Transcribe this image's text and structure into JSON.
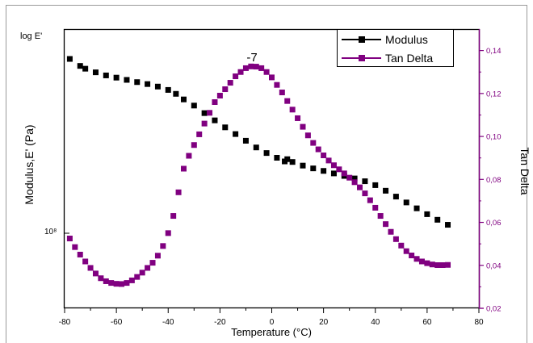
{
  "chart_data": {
    "type": "scatter",
    "title": "",
    "xlabel": "Temperature (°C)",
    "ylabel_left": "Modulus,E' (Pa)",
    "ylabel_right": "Tan Delta",
    "left_axis_top_label": "log E'",
    "left_axis_tick_label": "10⁸",
    "peak_annotation": "-7",
    "xlim": [
      -80,
      80
    ],
    "x_ticks": [
      "-80",
      "-60",
      "-40",
      "-20",
      "0",
      "20",
      "40",
      "60",
      "80"
    ],
    "ylim_right": [
      0.02,
      0.15
    ],
    "right_ticks": [
      "0,02",
      "0,04",
      "0,06",
      "0,08",
      "0,10",
      "0,12",
      "0,14"
    ],
    "left_scale": "log",
    "left_axis_range_fraction": [
      0,
      1
    ],
    "grid": false,
    "legend_position": "top-right",
    "series": [
      {
        "name": "Modulus",
        "axis": "left",
        "color": "#000000",
        "points": [
          [
            -78,
            0.893
          ],
          [
            -74,
            0.868
          ],
          [
            -72,
            0.858
          ],
          [
            -68,
            0.845
          ],
          [
            -64,
            0.834
          ],
          [
            -60,
            0.826
          ],
          [
            -56,
            0.818
          ],
          [
            -52,
            0.81
          ],
          [
            -48,
            0.803
          ],
          [
            -44,
            0.794
          ],
          [
            -40,
            0.782
          ],
          [
            -37,
            0.768
          ],
          [
            -34,
            0.748
          ],
          [
            -30,
            0.726
          ],
          [
            -26,
            0.699
          ],
          [
            -22,
            0.673
          ],
          [
            -18,
            0.648
          ],
          [
            -14,
            0.624
          ],
          [
            -10,
            0.6
          ],
          [
            -6,
            0.576
          ],
          [
            -2,
            0.556
          ],
          [
            2,
            0.539
          ],
          [
            5,
            0.526
          ],
          [
            6,
            0.534
          ],
          [
            8,
            0.524
          ],
          [
            12,
            0.511
          ],
          [
            16,
            0.501
          ],
          [
            20,
            0.492
          ],
          [
            24,
            0.483
          ],
          [
            28,
            0.474
          ],
          [
            32,
            0.465
          ],
          [
            36,
            0.455
          ],
          [
            40,
            0.441
          ],
          [
            44,
            0.421
          ],
          [
            48,
            0.4
          ],
          [
            52,
            0.379
          ],
          [
            56,
            0.358
          ],
          [
            60,
            0.337
          ],
          [
            64,
            0.317
          ],
          [
            68,
            0.299
          ]
        ]
      },
      {
        "name": "Tan Delta",
        "axis": "right",
        "color": "#800080",
        "points": [
          [
            -78,
            0.0525
          ],
          [
            -76,
            0.0485
          ],
          [
            -74,
            0.045
          ],
          [
            -72,
            0.0418
          ],
          [
            -70,
            0.0388
          ],
          [
            -68,
            0.0362
          ],
          [
            -66,
            0.034
          ],
          [
            -64,
            0.0326
          ],
          [
            -62,
            0.0318
          ],
          [
            -60,
            0.0314
          ],
          [
            -58,
            0.0313
          ],
          [
            -56,
            0.0318
          ],
          [
            -54,
            0.033
          ],
          [
            -52,
            0.0346
          ],
          [
            -50,
            0.0366
          ],
          [
            -48,
            0.0388
          ],
          [
            -46,
            0.0412
          ],
          [
            -44,
            0.0445
          ],
          [
            -42,
            0.049
          ],
          [
            -40,
            0.055
          ],
          [
            -38,
            0.063
          ],
          [
            -36,
            0.074
          ],
          [
            -34,
            0.085
          ],
          [
            -32,
            0.091
          ],
          [
            -30,
            0.096
          ],
          [
            -28,
            0.101
          ],
          [
            -26,
            0.106
          ],
          [
            -24,
            0.111
          ],
          [
            -22,
            0.116
          ],
          [
            -20,
            0.119
          ],
          [
            -18,
            0.122
          ],
          [
            -16,
            0.125
          ],
          [
            -14,
            0.128
          ],
          [
            -12,
            0.13
          ],
          [
            -10,
            0.1318
          ],
          [
            -8,
            0.1326
          ],
          [
            -6,
            0.1325
          ],
          [
            -4,
            0.1318
          ],
          [
            -2,
            0.13
          ],
          [
            0,
            0.1275
          ],
          [
            2,
            0.124
          ],
          [
            4,
            0.1205
          ],
          [
            6,
            0.1165
          ],
          [
            8,
            0.1125
          ],
          [
            10,
            0.1085
          ],
          [
            12,
            0.1045
          ],
          [
            14,
            0.1005
          ],
          [
            16,
            0.097
          ],
          [
            18,
            0.094
          ],
          [
            20,
            0.0912
          ],
          [
            22,
            0.0888
          ],
          [
            24,
            0.0866
          ],
          [
            26,
            0.0847
          ],
          [
            28,
            0.0828
          ],
          [
            30,
            0.0808
          ],
          [
            32,
            0.0787
          ],
          [
            34,
            0.0763
          ],
          [
            36,
            0.0735
          ],
          [
            38,
            0.0703
          ],
          [
            40,
            0.0668
          ],
          [
            42,
            0.063
          ],
          [
            44,
            0.0592
          ],
          [
            46,
            0.0556
          ],
          [
            48,
            0.0522
          ],
          [
            50,
            0.0492
          ],
          [
            52,
            0.0466
          ],
          [
            54,
            0.0446
          ],
          [
            56,
            0.043
          ],
          [
            58,
            0.0418
          ],
          [
            60,
            0.041
          ],
          [
            62,
            0.0404
          ],
          [
            64,
            0.0401
          ],
          [
            66,
            0.0401
          ],
          [
            68,
            0.0402
          ]
        ]
      }
    ]
  }
}
